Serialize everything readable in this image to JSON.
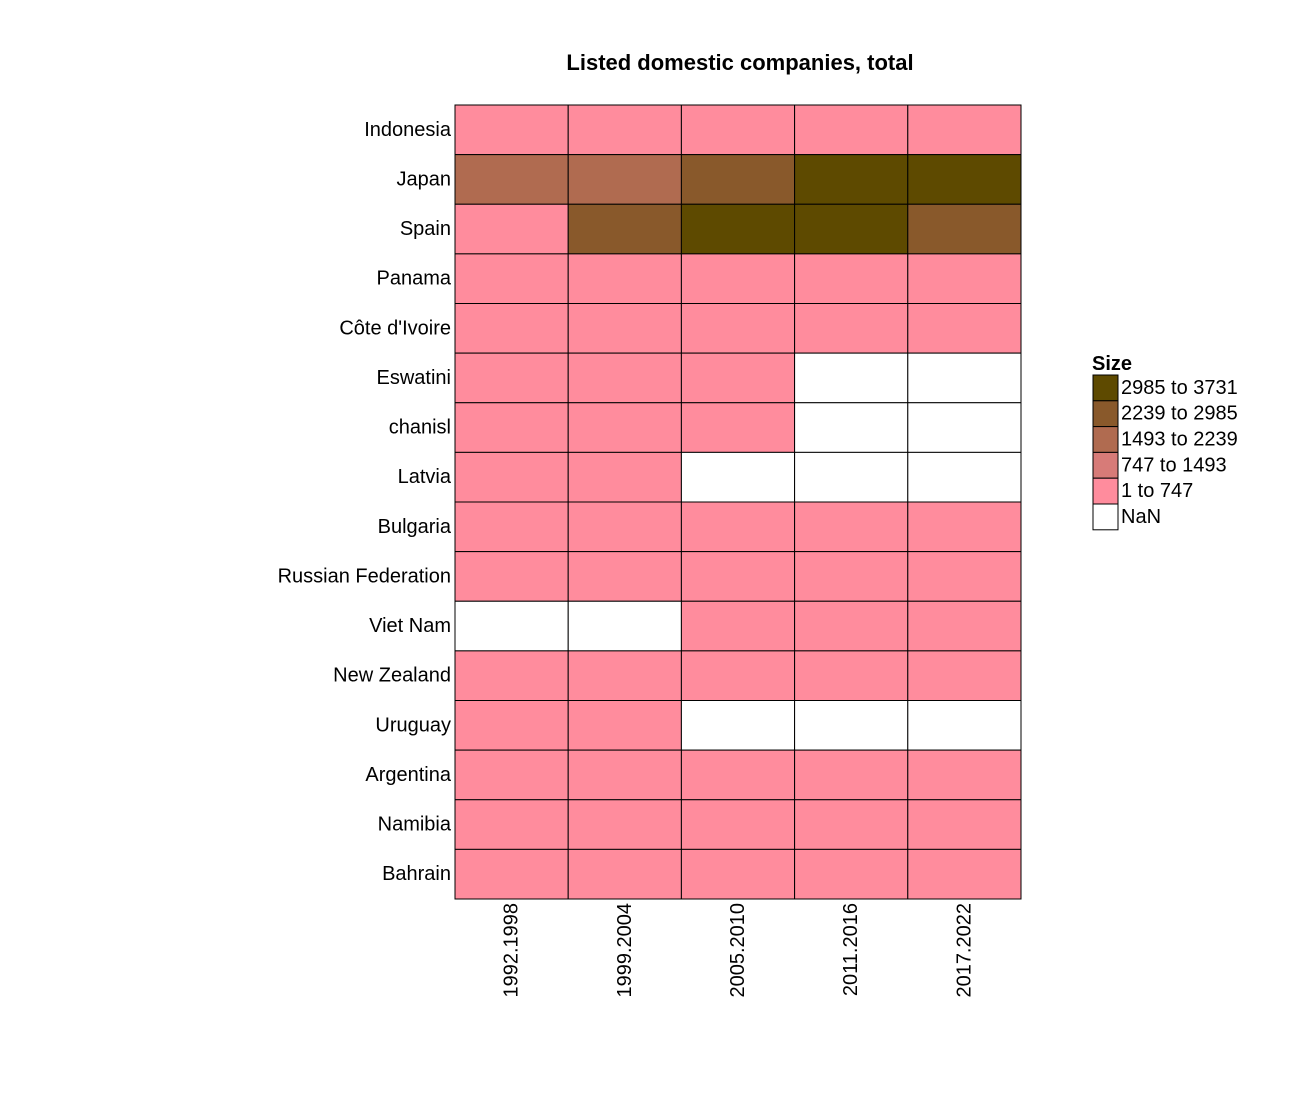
{
  "chart_data": {
    "type": "heatmap",
    "title": "Listed domestic companies, total",
    "rows": [
      "Indonesia",
      "Japan",
      "Spain",
      "Panama",
      "Côte d'Ivoire",
      "Eswatini",
      "chanisl",
      "Latvia",
      "Bulgaria",
      "Russian Federation",
      "Viet Nam",
      "New Zealand",
      "Uruguay",
      "Argentina",
      "Namibia",
      "Bahrain"
    ],
    "columns": [
      "1992.1998",
      "1999.2004",
      "2005.2010",
      "2011.2016",
      "2017.2022"
    ],
    "cells": [
      [
        "1 to 747",
        "1 to 747",
        "1 to 747",
        "1 to 747",
        "1 to 747"
      ],
      [
        "1493 to 2239",
        "1493 to 2239",
        "2239 to 2985",
        "2985 to 3731",
        "2985 to 3731"
      ],
      [
        "1 to 747",
        "2239 to 2985",
        "2985 to 3731",
        "2985 to 3731",
        "2239 to 2985"
      ],
      [
        "1 to 747",
        "1 to 747",
        "1 to 747",
        "1 to 747",
        "1 to 747"
      ],
      [
        "1 to 747",
        "1 to 747",
        "1 to 747",
        "1 to 747",
        "1 to 747"
      ],
      [
        "1 to 747",
        "1 to 747",
        "1 to 747",
        "NaN",
        "NaN"
      ],
      [
        "1 to 747",
        "1 to 747",
        "1 to 747",
        "NaN",
        "NaN"
      ],
      [
        "1 to 747",
        "1 to 747",
        "NaN",
        "NaN",
        "NaN"
      ],
      [
        "1 to 747",
        "1 to 747",
        "1 to 747",
        "1 to 747",
        "1 to 747"
      ],
      [
        "1 to 747",
        "1 to 747",
        "1 to 747",
        "1 to 747",
        "1 to 747"
      ],
      [
        "NaN",
        "NaN",
        "1 to 747",
        "1 to 747",
        "1 to 747"
      ],
      [
        "1 to 747",
        "1 to 747",
        "1 to 747",
        "1 to 747",
        "1 to 747"
      ],
      [
        "1 to 747",
        "1 to 747",
        "NaN",
        "NaN",
        "NaN"
      ],
      [
        "1 to 747",
        "1 to 747",
        "1 to 747",
        "1 to 747",
        "1 to 747"
      ],
      [
        "1 to 747",
        "1 to 747",
        "1 to 747",
        "1 to 747",
        "1 to 747"
      ],
      [
        "1 to 747",
        "1 to 747",
        "1 to 747",
        "1 to 747",
        "1 to 747"
      ]
    ],
    "legend": {
      "title": "Size",
      "placement": "right",
      "entries": [
        {
          "label": "2985 to 3731",
          "color": "#5e4a00"
        },
        {
          "label": "2239 to 2985",
          "color": "#89592b"
        },
        {
          "label": "1493 to 2239",
          "color": "#b06b50"
        },
        {
          "label": "747 to 1493",
          "color": "#d77b78"
        },
        {
          "label": "1 to 747",
          "color": "#ff8c9d"
        },
        {
          "label": "NaN",
          "color": "#ffffff"
        }
      ]
    },
    "grid": false
  }
}
